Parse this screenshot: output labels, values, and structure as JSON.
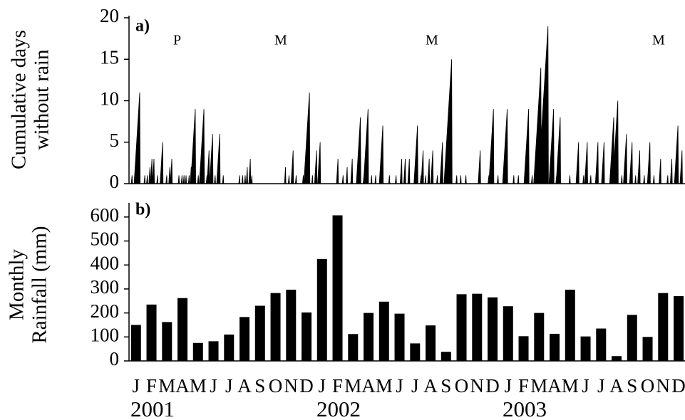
{
  "chart_data": [
    {
      "type": "spike",
      "ylabel": [
        "Cumulative days",
        "without rain"
      ],
      "annotations": [
        "a)",
        "P",
        "M",
        "M",
        "M"
      ],
      "xlim": [
        0,
        1095
      ],
      "ylim": [
        0,
        20
      ],
      "yticks": [
        0,
        5,
        10,
        15,
        20
      ],
      "color": "#000000",
      "x": [
        21,
        6,
        31,
        36,
        41,
        45,
        49,
        56,
        66,
        74,
        80,
        84,
        98,
        104,
        108,
        112,
        118,
        122,
        130,
        136,
        147,
        153,
        157,
        164,
        169,
        178,
        185,
        217,
        223,
        228,
        232,
        238,
        241,
        307,
        314,
        322,
        328,
        342,
        354,
        360,
        368,
        375,
        410,
        420,
        428,
        438,
        454,
        461,
        469,
        476,
        484,
        498,
        511,
        524,
        535,
        542,
        550,
        566,
        573,
        577,
        582,
        589,
        596,
        605,
        615,
        633,
        643,
        651,
        661,
        689,
        706,
        715,
        724,
        742,
        755,
        764,
        784,
        791,
        799,
        808,
        822,
        833,
        839,
        846,
        865,
        882,
        892,
        899,
        906,
        920,
        932,
        951,
        959,
        967,
        976,
        987,
        994,
        1002,
        1011,
        1022,
        1030,
        1043,
        1057,
        1065,
        1077,
        1085
      ],
      "values": [
        11,
        1,
        1,
        1,
        2,
        3,
        3,
        1,
        5,
        1,
        2,
        3,
        1,
        1,
        1,
        1,
        1,
        2,
        9,
        1,
        9,
        1,
        4,
        6,
        1,
        6,
        1,
        1,
        1,
        1,
        2,
        3,
        1,
        2,
        1,
        4,
        1,
        1,
        11,
        1,
        4,
        5,
        3,
        1,
        2,
        3,
        8,
        1,
        9,
        1,
        1,
        7,
        1,
        1,
        3,
        3,
        3,
        7,
        1,
        4,
        1,
        3,
        4,
        1,
        5,
        15,
        1,
        1,
        1,
        4,
        1,
        9,
        1,
        9,
        1,
        1,
        9,
        1,
        1,
        14,
        19,
        9,
        1,
        8,
        1,
        5,
        1,
        5,
        1,
        5,
        5,
        8,
        10,
        1,
        6,
        5,
        1,
        4,
        1,
        5,
        1,
        3,
        1,
        3,
        7,
        4
      ]
    },
    {
      "type": "bar",
      "ylabel": [
        "Monthly",
        "Rainfall (mm)"
      ],
      "annotations": [
        "b)"
      ],
      "categories": [
        "J",
        "F",
        "M",
        "A",
        "M",
        "J",
        "J",
        "A",
        "S",
        "O",
        "N",
        "D",
        "J",
        "F",
        "M",
        "A",
        "M",
        "J",
        "J",
        "A",
        "S",
        "O",
        "N",
        "D",
        "J",
        "F",
        "M",
        "A",
        "M",
        "J",
        "J",
        "A",
        "S",
        "O",
        "N",
        "D"
      ],
      "x_group_labels": [
        "2001",
        "2002",
        "2003"
      ],
      "values": [
        150,
        235,
        162,
        262,
        75,
        82,
        110,
        183,
        230,
        283,
        297,
        202,
        425,
        607,
        112,
        200,
        247,
        197,
        73,
        148,
        38,
        278,
        280,
        265,
        228,
        103,
        200,
        113,
        297,
        102,
        135,
        20,
        192,
        100,
        283,
        270
      ],
      "ylim": [
        0,
        650
      ],
      "yticks": [
        0,
        100,
        200,
        300,
        400,
        500,
        600
      ],
      "color": "#000000"
    }
  ]
}
